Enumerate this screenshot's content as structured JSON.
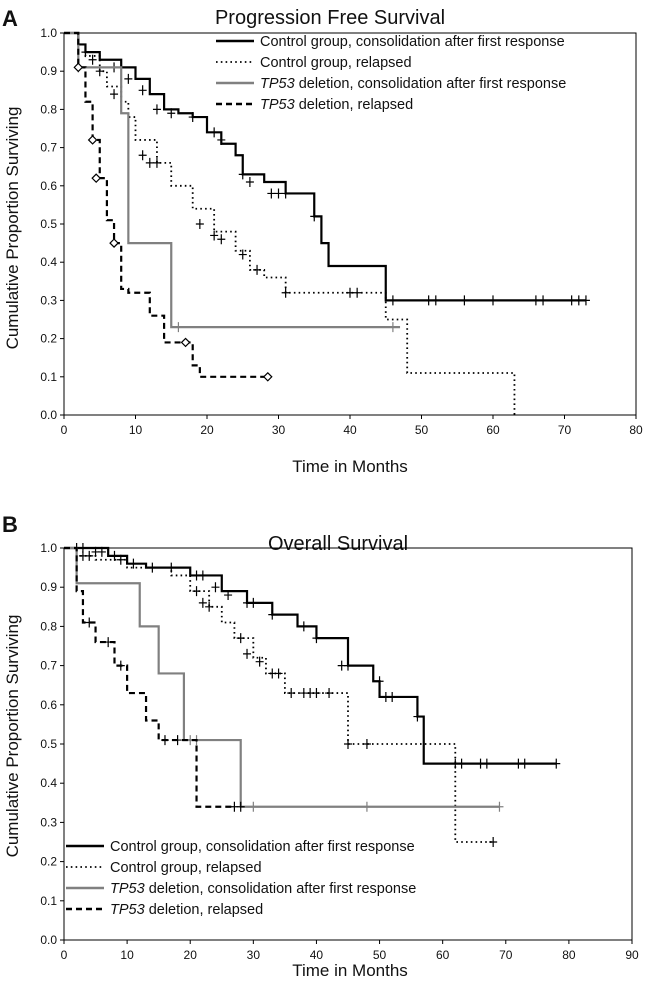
{
  "chart_data": [
    {
      "type": "line",
      "panel_label": "A",
      "title": "Progression Free Survival",
      "xlabel": "Time in Months",
      "ylabel": "Cumulative Proportion Surviving",
      "xlim": [
        0,
        80
      ],
      "ylim": [
        0,
        1.0
      ],
      "x_ticks": [
        "0",
        "10",
        "20",
        "30",
        "40",
        "50",
        "60",
        "70",
        "80"
      ],
      "y_ticks": [
        "0.0",
        "0.1",
        "0.2",
        "0.3",
        "0.4",
        "0.5",
        "0.6",
        "0.7",
        "0.8",
        "0.9",
        "1.0"
      ],
      "grid": false,
      "legend_position": "top-right",
      "series": [
        {
          "name": "Control group, consolidation after first response",
          "style": "solid",
          "color": "#000000",
          "x": [
            0,
            2,
            3,
            5,
            8,
            10,
            12,
            14,
            16,
            18,
            20,
            22,
            24,
            25,
            28,
            31,
            35,
            36,
            37,
            45,
            73
          ],
          "y": [
            1.0,
            0.97,
            0.95,
            0.93,
            0.91,
            0.88,
            0.84,
            0.8,
            0.79,
            0.78,
            0.74,
            0.71,
            0.68,
            0.63,
            0.61,
            0.58,
            0.52,
            0.45,
            0.39,
            0.3,
            0.3
          ],
          "censored": [
            [
              3,
              0.95
            ],
            [
              4,
              0.93
            ],
            [
              7,
              0.91
            ],
            [
              9,
              0.88
            ],
            [
              11,
              0.85
            ],
            [
              13,
              0.8
            ],
            [
              15,
              0.79
            ],
            [
              18,
              0.78
            ],
            [
              21,
              0.74
            ],
            [
              22,
              0.72
            ],
            [
              25,
              0.63
            ],
            [
              26,
              0.61
            ],
            [
              29,
              0.58
            ],
            [
              30,
              0.58
            ],
            [
              31,
              0.58
            ],
            [
              35,
              0.52
            ],
            [
              46,
              0.3
            ],
            [
              51,
              0.3
            ],
            [
              52,
              0.3
            ],
            [
              56,
              0.3
            ],
            [
              60,
              0.3
            ],
            [
              66,
              0.3
            ],
            [
              67,
              0.3
            ],
            [
              71,
              0.3
            ],
            [
              72,
              0.3
            ],
            [
              73,
              0.3
            ]
          ]
        },
        {
          "name": "Control group, relapsed",
          "style": "dotted",
          "color": "#000000",
          "x": [
            0,
            2,
            3,
            5,
            6,
            8,
            9,
            10,
            13,
            15,
            18,
            21,
            24,
            26,
            28,
            31,
            45,
            48,
            63
          ],
          "y": [
            1.0,
            0.97,
            0.94,
            0.9,
            0.86,
            0.82,
            0.78,
            0.72,
            0.66,
            0.6,
            0.54,
            0.48,
            0.43,
            0.38,
            0.36,
            0.32,
            0.25,
            0.11,
            0.0
          ],
          "censored": [
            [
              5,
              0.9
            ],
            [
              7,
              0.84
            ],
            [
              11,
              0.68
            ],
            [
              12,
              0.66
            ],
            [
              13,
              0.66
            ],
            [
              19,
              0.5
            ],
            [
              21,
              0.47
            ],
            [
              22,
              0.46
            ],
            [
              25,
              0.42
            ],
            [
              27,
              0.38
            ],
            [
              31,
              0.32
            ],
            [
              40,
              0.32
            ],
            [
              41,
              0.32
            ]
          ]
        },
        {
          "name": "TP53 deletion, consolidation after first response",
          "style": "solid",
          "color": "#808080",
          "x": [
            0,
            2,
            7,
            8,
            9,
            14,
            15,
            45,
            47
          ],
          "y": [
            1.0,
            0.91,
            0.91,
            0.79,
            0.45,
            0.45,
            0.23,
            0.23,
            0.23
          ],
          "censored": [
            [
              2,
              0.91
            ],
            [
              16,
              0.23
            ],
            [
              46,
              0.23
            ]
          ]
        },
        {
          "name": "TP53 deletion, relapsed",
          "style": "dashed",
          "color": "#000000",
          "x": [
            0,
            2,
            3,
            4,
            5,
            6,
            7,
            8,
            9,
            12,
            14,
            18,
            19,
            28
          ],
          "y": [
            1.0,
            0.91,
            0.82,
            0.72,
            0.62,
            0.51,
            0.45,
            0.33,
            0.32,
            0.26,
            0.19,
            0.13,
            0.1,
            0.1
          ],
          "censored": [
            [
              2,
              0.91
            ],
            [
              4,
              0.72
            ],
            [
              4.5,
              0.62
            ],
            [
              7,
              0.45
            ],
            [
              17,
              0.19
            ],
            [
              28.5,
              0.1
            ]
          ]
        }
      ],
      "legend": {
        "entries": [
          {
            "italic_part": "",
            "text": "Control group, consolidation after first response",
            "style": "solid",
            "color": "#000000"
          },
          {
            "italic_part": "",
            "text": "Control group, relapsed",
            "style": "dotted",
            "color": "#000000"
          },
          {
            "italic_part": "TP53",
            "text": " deletion, consolidation after first response",
            "style": "solid",
            "color": "#808080"
          },
          {
            "italic_part": "TP53",
            "text": " deletion, relapsed",
            "style": "dashed",
            "color": "#000000"
          }
        ]
      }
    },
    {
      "type": "line",
      "panel_label": "B",
      "title": "Overall Survival",
      "xlabel": "Time in Months",
      "ylabel": "Cumulative Proportion Surviving",
      "xlim": [
        0,
        90
      ],
      "ylim": [
        0,
        1.0
      ],
      "x_ticks": [
        "0",
        "10",
        "20",
        "30",
        "40",
        "50",
        "60",
        "70",
        "80",
        "90"
      ],
      "y_ticks": [
        "0.0",
        "0.1",
        "0.2",
        "0.3",
        "0.4",
        "0.5",
        "0.6",
        "0.7",
        "0.8",
        "0.9",
        "1.0"
      ],
      "grid": false,
      "legend_position": "bottom-left",
      "series": [
        {
          "name": "Control group, consolidation after first response",
          "style": "solid",
          "color": "#000000",
          "x": [
            0,
            7,
            10,
            13,
            20,
            25,
            29,
            33,
            37,
            40,
            45,
            49,
            50,
            53,
            56,
            57,
            78
          ],
          "y": [
            1.0,
            0.98,
            0.96,
            0.95,
            0.93,
            0.89,
            0.86,
            0.83,
            0.8,
            0.77,
            0.7,
            0.66,
            0.62,
            0.62,
            0.57,
            0.45,
            0.45
          ],
          "censored": [
            [
              2,
              1.0
            ],
            [
              3,
              1.0
            ],
            [
              5,
              0.99
            ],
            [
              6,
              0.99
            ],
            [
              8,
              0.98
            ],
            [
              9,
              0.97
            ],
            [
              11,
              0.96
            ],
            [
              14,
              0.95
            ],
            [
              17,
              0.95
            ],
            [
              21,
              0.93
            ],
            [
              22,
              0.93
            ],
            [
              24,
              0.9
            ],
            [
              26,
              0.88
            ],
            [
              29,
              0.86
            ],
            [
              30,
              0.86
            ],
            [
              33,
              0.83
            ],
            [
              38,
              0.8
            ],
            [
              40,
              0.77
            ],
            [
              44,
              0.7
            ],
            [
              45,
              0.7
            ],
            [
              50,
              0.66
            ],
            [
              51,
              0.62
            ],
            [
              52,
              0.62
            ],
            [
              56,
              0.57
            ],
            [
              62,
              0.45
            ],
            [
              63,
              0.45
            ],
            [
              66,
              0.45
            ],
            [
              67,
              0.45
            ],
            [
              72,
              0.45
            ],
            [
              73,
              0.45
            ],
            [
              78,
              0.45
            ]
          ]
        },
        {
          "name": "Control group, relapsed",
          "style": "dotted",
          "color": "#000000",
          "x": [
            0,
            2,
            5,
            10,
            17,
            20,
            23,
            25,
            27,
            30,
            32,
            35,
            45,
            62,
            68
          ],
          "y": [
            1.0,
            0.98,
            0.97,
            0.95,
            0.93,
            0.89,
            0.85,
            0.81,
            0.77,
            0.72,
            0.68,
            0.63,
            0.5,
            0.25,
            0.25
          ],
          "censored": [
            [
              3,
              0.98
            ],
            [
              4,
              0.98
            ],
            [
              21,
              0.89
            ],
            [
              22,
              0.86
            ],
            [
              23,
              0.85
            ],
            [
              28,
              0.77
            ],
            [
              29,
              0.73
            ],
            [
              31,
              0.71
            ],
            [
              33,
              0.68
            ],
            [
              34,
              0.68
            ],
            [
              36,
              0.63
            ],
            [
              38,
              0.63
            ],
            [
              39,
              0.63
            ],
            [
              40,
              0.63
            ],
            [
              42,
              0.63
            ],
            [
              45,
              0.5
            ],
            [
              48,
              0.5
            ],
            [
              68,
              0.25
            ]
          ]
        },
        {
          "name": "TP53 deletion, consolidation after first response",
          "style": "solid",
          "color": "#808080",
          "x": [
            0,
            2,
            11,
            12,
            15,
            19,
            28,
            69
          ],
          "y": [
            1.0,
            0.91,
            0.91,
            0.8,
            0.68,
            0.51,
            0.34,
            0.34
          ],
          "censored": [
            [
              20,
              0.51
            ],
            [
              21,
              0.51
            ],
            [
              30,
              0.34
            ],
            [
              48,
              0.34
            ],
            [
              69,
              0.34
            ]
          ]
        },
        {
          "name": "TP53 deletion, relapsed",
          "style": "dashed",
          "color": "#000000",
          "x": [
            0,
            2,
            3,
            5,
            8,
            10,
            13,
            15,
            17,
            21,
            27
          ],
          "y": [
            1.0,
            0.89,
            0.81,
            0.76,
            0.7,
            0.63,
            0.56,
            0.51,
            0.51,
            0.34,
            0.34
          ],
          "censored": [
            [
              4,
              0.81
            ],
            [
              7,
              0.76
            ],
            [
              9,
              0.7
            ],
            [
              16,
              0.51
            ],
            [
              18,
              0.51
            ],
            [
              27,
              0.34
            ],
            [
              28,
              0.34
            ]
          ]
        }
      ],
      "legend": {
        "entries": [
          {
            "italic_part": "",
            "text": "Control group, consolidation after first response",
            "style": "solid",
            "color": "#000000"
          },
          {
            "italic_part": "",
            "text": "Control group, relapsed",
            "style": "dotted",
            "color": "#000000"
          },
          {
            "italic_part": "TP53",
            "text": " deletion, consolidation after first response",
            "style": "solid",
            "color": "#808080"
          },
          {
            "italic_part": "TP53",
            "text": " deletion, relapsed",
            "style": "dashed",
            "color": "#000000"
          }
        ]
      }
    }
  ]
}
